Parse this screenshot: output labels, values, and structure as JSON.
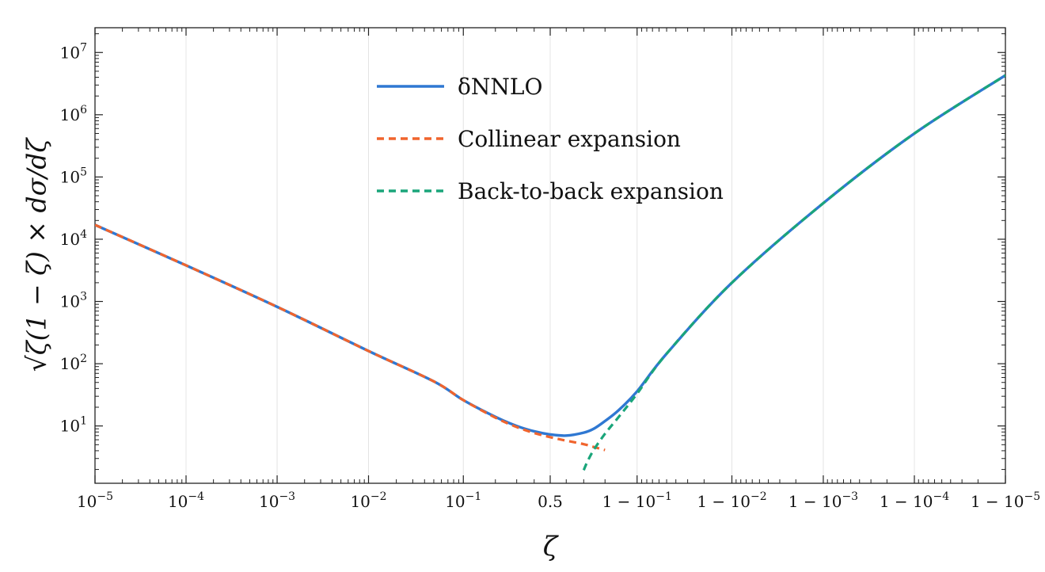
{
  "chart_data": {
    "type": "line",
    "xlabel": "ζ",
    "ylabel": "√ζ(1 − ζ) × dσ/dζ",
    "xscale": "logit (log near ζ=0 and near ζ=1)",
    "yscale": "log",
    "xlim": [
      1e-05,
      0.99999
    ],
    "ylim": [
      1.2,
      25000000
    ],
    "grid": "vertical",
    "legend_position": "top-center",
    "x_tick_labels": [
      "10^-5",
      "10^-4",
      "10^-3",
      "10^-2",
      "10^-1",
      "0.5",
      "1 − 10^-1",
      "1 − 10^-2",
      "1 − 10^-3",
      "1 − 10^-4",
      "1 − 10^-5"
    ],
    "x_tick_values": [
      1e-05,
      0.0001,
      0.001,
      0.01,
      0.1,
      0.5,
      0.9,
      0.99,
      0.999,
      0.9999,
      0.99999
    ],
    "y_tick_labels": [
      "10^1",
      "10^2",
      "10^3",
      "10^4",
      "10^5",
      "10^6",
      "10^7"
    ],
    "y_tick_values": [
      10,
      100,
      1000,
      10000,
      100000,
      1000000,
      10000000
    ],
    "series": [
      {
        "name": "δNNLO",
        "color": "#2f78d2",
        "style": "solid",
        "x": [
          1e-05,
          0.0001,
          0.001,
          0.01,
          0.05,
          0.1,
          0.2,
          0.3,
          0.4,
          0.5,
          0.6,
          0.7,
          0.75,
          0.8,
          0.85,
          0.9,
          0.95,
          0.99,
          0.999,
          0.9999,
          0.99999
        ],
        "y": [
          17000,
          3800,
          820,
          160,
          52,
          26,
          14,
          10,
          8.2,
          7.3,
          7.0,
          7.8,
          9.0,
          12,
          18,
          36,
          145,
          2000,
          38000,
          500000,
          4300000
        ]
      },
      {
        "name": "Collinear expansion",
        "color": "#f0642d",
        "style": "dashed",
        "x": [
          1e-05,
          0.0001,
          0.001,
          0.01,
          0.05,
          0.1,
          0.2,
          0.3,
          0.4,
          0.5,
          0.6,
          0.7,
          0.75,
          0.8
        ],
        "y": [
          17000,
          3800,
          820,
          160,
          52,
          26,
          13.6,
          9.6,
          7.7,
          6.6,
          5.8,
          5.1,
          4.6,
          4.1
        ]
      },
      {
        "name": "Back-to-back expansion",
        "color": "#1aa57a",
        "style": "dashed",
        "x": [
          0.7,
          0.72,
          0.75,
          0.8,
          0.85,
          0.9,
          0.95,
          0.99,
          0.999,
          0.9999,
          0.99999
        ],
        "y": [
          1.95,
          2.7,
          4.1,
          7.5,
          14,
          33,
          145,
          2000,
          38000,
          500000,
          4300000
        ]
      }
    ]
  }
}
